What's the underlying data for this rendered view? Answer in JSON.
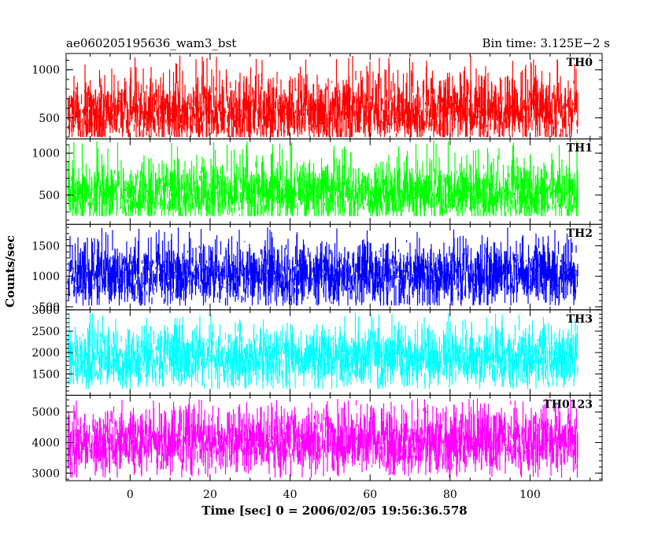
{
  "header": {
    "left_title": "ae060205195636_wam3_bst",
    "right_title": "Bin time: 3.125E−2 s"
  },
  "axes": {
    "xlabel": "Time [sec] 0 = 2006/02/05 19:56:36.578",
    "ylabel": "Counts/sec"
  },
  "chart_data": {
    "type": "line",
    "title": "ae060205195636_wam3_bst",
    "subtitle": "Bin time: 3.125E−2 s",
    "xlabel": "Time [sec] 0 = 2006/02/05 19:56:36.578",
    "ylabel": "Counts/sec",
    "xlim": [
      -16,
      118
    ],
    "data_range_x": [
      -15.5,
      112
    ],
    "x_ticks": [
      0,
      20,
      40,
      60,
      80,
      100
    ],
    "grid": false,
    "legend": "none",
    "panels": [
      {
        "name": "TH0",
        "color": "#ff0000",
        "ylim": [
          280,
          1170
        ],
        "y_ticks": [
          500,
          1000
        ],
        "mean": 560,
        "min": 300,
        "max": 1150,
        "spread": 170
      },
      {
        "name": "TH1",
        "color": "#00ff00",
        "ylim": [
          150,
          1170
        ],
        "y_ticks": [
          500,
          1000
        ],
        "mean": 520,
        "min": 250,
        "max": 1150,
        "spread": 170
      },
      {
        "name": "TH2",
        "color": "#0000ff",
        "ylim": [
          450,
          1850
        ],
        "y_ticks": [
          500,
          1000,
          1500
        ],
        "mean": 1040,
        "min": 520,
        "max": 1800,
        "spread": 250
      },
      {
        "name": "TH3",
        "color": "#00ffff",
        "ylim": [
          1000,
          3000
        ],
        "y_ticks": [
          1500,
          2000,
          2500,
          3000
        ],
        "mean": 1900,
        "min": 1150,
        "max": 2950,
        "spread": 330
      },
      {
        "name": "TH0123",
        "color": "#ff00ff",
        "ylim": [
          2750,
          5550
        ],
        "y_ticks": [
          3000,
          4000,
          5000
        ],
        "mean": 4050,
        "min": 2850,
        "max": 5450,
        "spread": 500
      }
    ]
  }
}
